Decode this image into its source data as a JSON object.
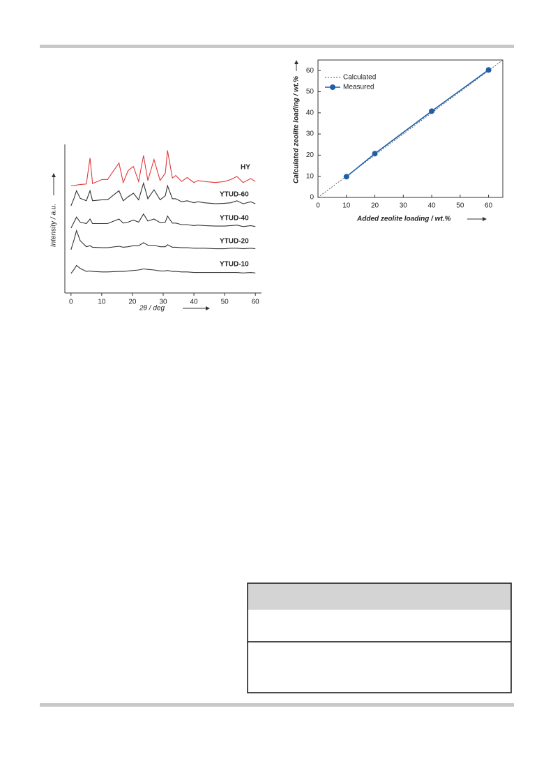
{
  "chart_data": [
    {
      "type": "line",
      "xlabel": "2θ / deg",
      "ylabel": "Intensity / a.u.",
      "xlim": [
        -2,
        62
      ],
      "xticks": [
        0,
        10,
        20,
        30,
        40,
        50,
        60
      ],
      "x": [
        0,
        1,
        1.8,
        3,
        5,
        6.2,
        7,
        10.1,
        11.9,
        15.6,
        17,
        18.6,
        20.3,
        22,
        23.6,
        25,
        27,
        29,
        30.7,
        31.4,
        33,
        34.1,
        36,
        37.8,
        40,
        41.3,
        43.5,
        47,
        50,
        52,
        54,
        56,
        58.5,
        60
      ],
      "series": [
        {
          "name": "HY",
          "color": "#e0393b",
          "values": [
            0,
            0,
            1,
            2,
            3,
            55,
            4,
            12,
            12,
            45,
            6,
            30,
            38,
            8,
            60,
            10,
            52,
            10,
            25,
            70,
            15,
            20,
            8,
            16,
            6,
            10,
            8,
            6,
            8,
            12,
            18,
            6,
            14,
            8
          ]
        },
        {
          "name": "YTUD-60",
          "color": "#333333",
          "values": [
            0,
            15,
            30,
            15,
            10,
            30,
            10,
            12,
            12,
            30,
            10,
            18,
            25,
            12,
            45,
            14,
            32,
            12,
            20,
            40,
            14,
            14,
            8,
            10,
            6,
            8,
            6,
            4,
            5,
            6,
            10,
            4,
            8,
            4
          ]
        },
        {
          "name": "YTUD-40",
          "color": "#333333",
          "values": [
            0,
            12,
            22,
            12,
            9,
            18,
            9,
            9,
            9,
            18,
            10,
            12,
            16,
            12,
            28,
            14,
            18,
            11,
            12,
            24,
            10,
            10,
            7,
            7,
            5,
            6,
            5,
            4,
            4,
            5,
            6,
            3,
            5,
            3
          ]
        },
        {
          "name": "YTUD-20",
          "color": "#333333",
          "values": [
            0,
            20,
            38,
            18,
            6,
            8,
            5,
            4,
            4,
            7,
            5,
            6,
            8,
            8,
            14,
            9,
            9,
            6,
            6,
            10,
            5,
            5,
            4,
            4,
            3,
            3,
            3,
            2,
            2,
            3,
            3,
            2,
            3,
            2
          ]
        },
        {
          "name": "YTUD-10",
          "color": "#333333",
          "values": [
            0,
            8,
            16,
            10,
            4,
            5,
            4,
            3,
            3,
            4,
            4,
            5,
            6,
            7,
            9,
            8,
            7,
            5,
            5,
            6,
            4,
            4,
            3,
            3,
            2,
            2,
            2,
            2,
            2,
            2,
            2,
            1,
            2,
            1
          ]
        }
      ]
    },
    {
      "type": "line",
      "xlabel": "Added zeolite loading / wt.%",
      "ylabel": "Calculated zeolite loading / wt.%",
      "xlim": [
        0,
        65
      ],
      "xticks": [
        0,
        10,
        20,
        30,
        40,
        50,
        60
      ],
      "ylim": [
        0,
        65
      ],
      "yticks": [
        0,
        10,
        20,
        30,
        40,
        50,
        60
      ],
      "legend": "upper-left",
      "series": [
        {
          "name": "Calculated",
          "color": "#555555",
          "dashed": true,
          "x": [
            0,
            65
          ],
          "values": [
            0,
            65
          ]
        },
        {
          "name": "Measured",
          "color": "#1f5fa8",
          "marker": true,
          "x": [
            10,
            20,
            40,
            60
          ],
          "values": [
            9.8,
            20.7,
            40.8,
            60.3
          ]
        }
      ]
    }
  ]
}
